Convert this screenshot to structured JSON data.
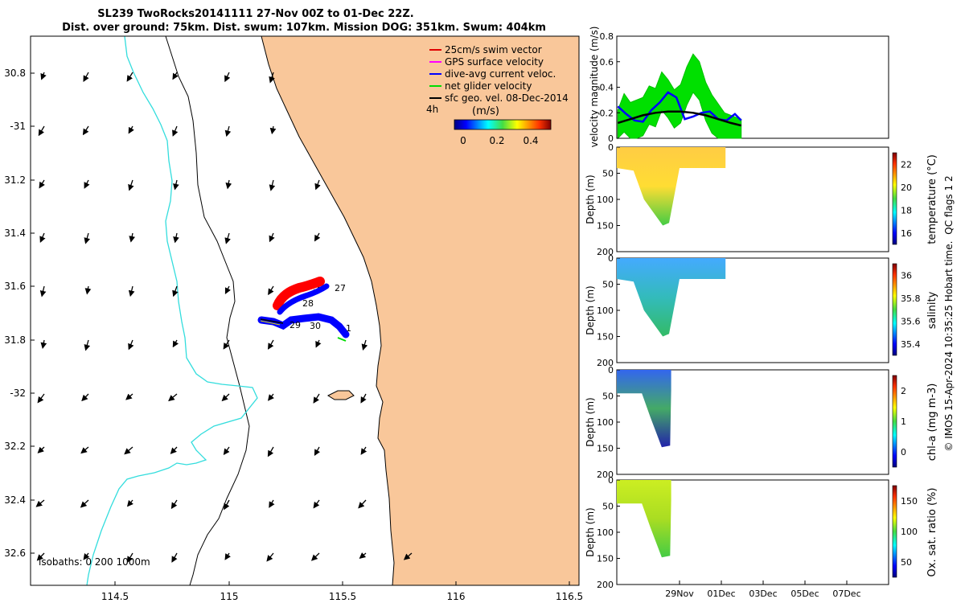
{
  "title": {
    "line1": "SL239 TwoRocks20141111 27-Nov 00Z to 01-Dec 22Z.",
    "line2": "Dist. over ground: 75km. Dist. swum: 107km. Mission DOG: 351km. Swum: 404km"
  },
  "map": {
    "lon_ticks": [
      "114.5",
      "115",
      "115.5",
      "116",
      "116.5"
    ],
    "lat_ticks": [
      "30.8",
      "-31",
      "31.2",
      "31.4",
      "31.6",
      "31.8",
      "-32",
      "32.2",
      "32.4",
      "32.6"
    ],
    "legend": {
      "items": [
        {
          "label": "25cm/s swim vector",
          "color": "#e00000"
        },
        {
          "label": "GPS surface velocity",
          "color": "#ff00ff"
        },
        {
          "label": "dive-avg current veloc.",
          "color": "#0000ff"
        },
        {
          "label": "net glider velocity",
          "color": "#00dd00"
        },
        {
          "label": "sfc geo. vel. 08-Dec-2014",
          "color": "#000000"
        }
      ],
      "period": "4h",
      "colorbar_title": "(m/s)",
      "colorbar_ticks": [
        "0",
        "0.2",
        "0.4"
      ]
    },
    "track_labels": [
      "27",
      "28",
      "29",
      "30",
      "1"
    ],
    "isobaths_label": "isobaths: 0   200  1000m",
    "colors": {
      "land": "#f9c79a",
      "coast": "#000000",
      "isobath_200": "#000000",
      "isobath_1000": "#33dddd"
    }
  },
  "timeseries": {
    "x_ticks": [
      "29Nov",
      "01Dec",
      "03Dec",
      "05Dec",
      "07Dec"
    ],
    "velocity_panel": {
      "ylabel": "velocity magnitude (m/s)",
      "y_ticks": [
        "0",
        "0.2",
        "0.4",
        "0.6",
        "0.8"
      ],
      "ylim": [
        0,
        0.8
      ]
    },
    "depth_panels": [
      {
        "name": "temperature",
        "ylabel": "Depth (m)",
        "y_ticks": [
          "0",
          "50",
          "100",
          "150",
          "200"
        ],
        "colorbar_label": "temperature (°C)",
        "colorbar_ticks": [
          "16",
          "18",
          "20",
          "22"
        ]
      },
      {
        "name": "salinity",
        "ylabel": "Depth (m)",
        "y_ticks": [
          "0",
          "50",
          "100",
          "150",
          "200"
        ],
        "colorbar_label": "salinity",
        "colorbar_ticks": [
          "35.4",
          "35.6",
          "35.8",
          "36"
        ]
      },
      {
        "name": "chla",
        "ylabel": "Depth (m)",
        "y_ticks": [
          "0",
          "50",
          "100",
          "150",
          "200"
        ],
        "colorbar_label": "chl-a (mg m-3)",
        "colorbar_ticks": [
          "0",
          "1",
          "2"
        ]
      },
      {
        "name": "oxygen",
        "ylabel": "Depth (m)",
        "y_ticks": [
          "0",
          "50",
          "100",
          "150",
          "200"
        ],
        "colorbar_label": "Ox. sat. ratio (%)",
        "colorbar_ticks": [
          "50",
          "100",
          "150"
        ]
      }
    ],
    "qc_label": "QC flags 1  2",
    "footer": "© IMOS 15-Apr-2024 10:35:25 Hobart time."
  },
  "chart_data": [
    {
      "type": "line",
      "title": "velocity magnitude",
      "xlabel": "",
      "ylabel": "velocity magnitude (m/s)",
      "ylim": [
        0,
        0.8
      ],
      "x_range_days": [
        "26Nov",
        "09Dec"
      ],
      "series": [
        {
          "name": "dive-avg current veloc.",
          "color": "#0000ff",
          "x": [
            0.0,
            0.4,
            0.8,
            1.2,
            1.6,
            2.0,
            2.4,
            2.8,
            3.2,
            3.6,
            4.0,
            4.4,
            4.8,
            5.2,
            5.6,
            5.9
          ],
          "y": [
            0.25,
            0.19,
            0.14,
            0.13,
            0.22,
            0.28,
            0.36,
            0.32,
            0.15,
            0.17,
            0.2,
            0.21,
            0.15,
            0.14,
            0.19,
            0.14
          ]
        },
        {
          "name": "sfc geo. vel.",
          "color": "#000000",
          "x": [
            0.0,
            0.6,
            1.2,
            1.8,
            2.4,
            3.0,
            3.6,
            4.2,
            4.8,
            5.4,
            5.9
          ],
          "y": [
            0.12,
            0.15,
            0.18,
            0.2,
            0.21,
            0.21,
            0.2,
            0.18,
            0.15,
            0.12,
            0.1
          ]
        },
        {
          "name": "net glider velocity",
          "color": "#00dd00",
          "x": [
            0.0,
            0.3,
            0.6,
            0.9,
            1.2,
            1.5,
            1.8,
            2.1,
            2.4,
            2.7,
            3.0,
            3.3,
            3.6,
            3.9,
            4.2,
            4.5,
            4.8,
            5.1,
            5.4,
            5.7,
            5.9
          ],
          "y": [
            0.22,
            0.35,
            0.28,
            0.3,
            0.32,
            0.41,
            0.39,
            0.52,
            0.46,
            0.38,
            0.42,
            0.56,
            0.66,
            0.6,
            0.44,
            0.34,
            0.27,
            0.2,
            0.18,
            0.16,
            0.15
          ]
        }
      ]
    }
  ]
}
